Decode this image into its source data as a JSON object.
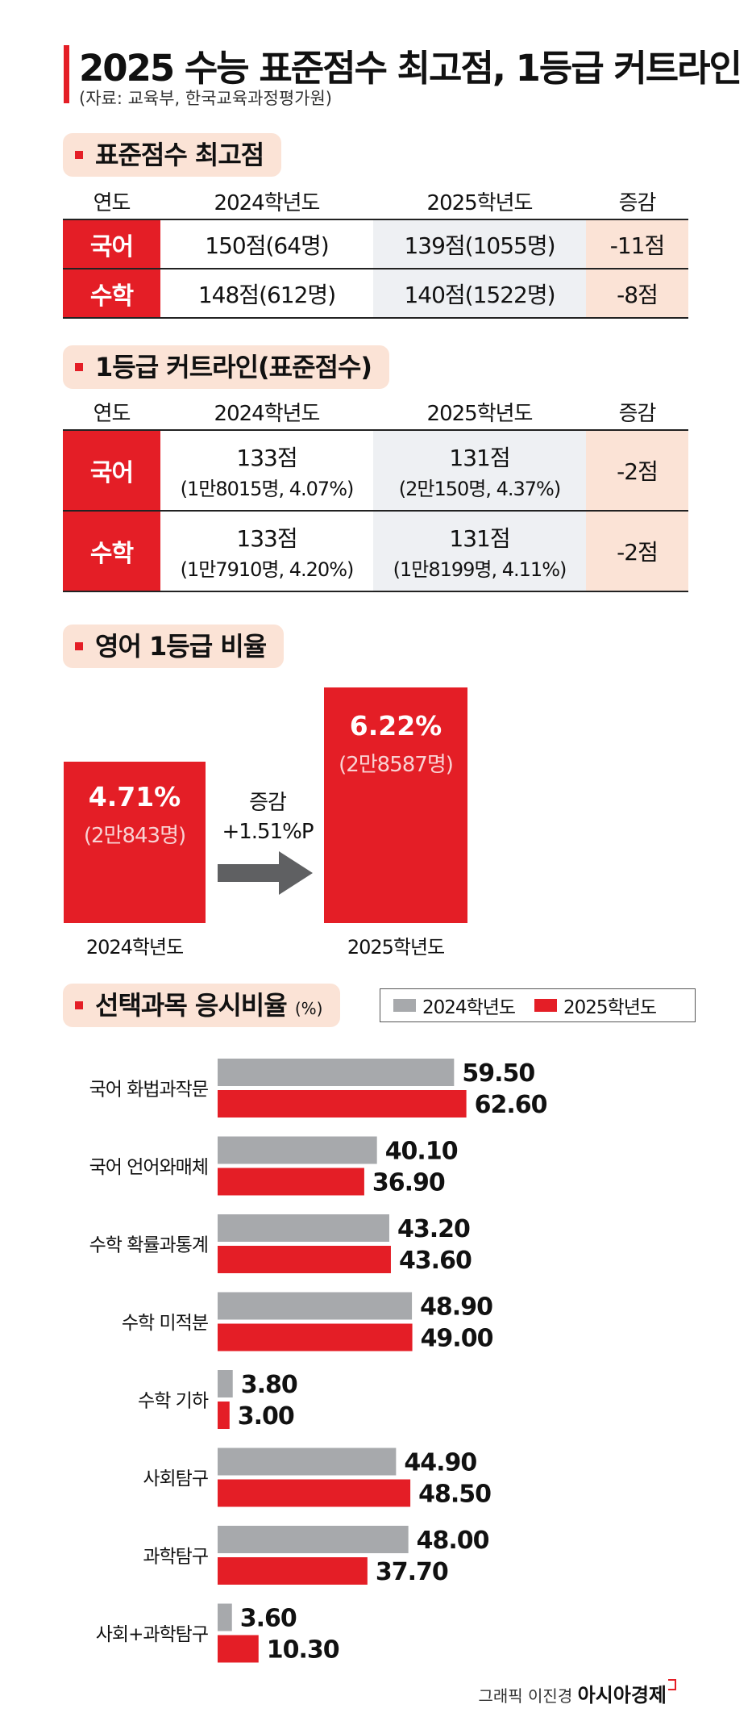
{
  "header": {
    "title": "2025 수능 표준점수 최고점, 1등급 커트라인",
    "source": "(자료: 교육부, 한국교육과정평가원)"
  },
  "section1": {
    "title": "표준점수 최고점",
    "headers": [
      "연도",
      "2024학년도",
      "2025학년도",
      "증감"
    ],
    "rows": [
      {
        "subject": "국어",
        "y2024": "150점(64명)",
        "y2025": "139점(1055명)",
        "change": "-11점"
      },
      {
        "subject": "수학",
        "y2024": "148점(612명)",
        "y2025": "140점(1522명)",
        "change": "-8점"
      }
    ]
  },
  "section2": {
    "title": "1등급 커트라인(표준점수)",
    "headers": [
      "연도",
      "2024학년도",
      "2025학년도",
      "증감"
    ],
    "rows": [
      {
        "subject": "국어",
        "y2024_score": "133점",
        "y2024_detail": "(1만8015명, 4.07%)",
        "y2025_score": "131점",
        "y2025_detail": "(2만150명, 4.37%)",
        "change": "-2점"
      },
      {
        "subject": "수학",
        "y2024_score": "133점",
        "y2024_detail": "(1만7910명, 4.20%)",
        "y2025_score": "131점",
        "y2025_detail": "(1만8199명, 4.11%)",
        "change": "-2점"
      }
    ]
  },
  "section3": {
    "title": "영어 1등급 비율",
    "y2024": {
      "value": "4.71%",
      "count": "(2만843명)",
      "label": "2024학년도"
    },
    "y2025": {
      "value": "6.22%",
      "count": "(2만8587명)",
      "label": "2025학년도"
    },
    "change_label": "증감",
    "change_value": "+1.51%P"
  },
  "section4": {
    "title": "선택과목 응시비율",
    "unit": "(%)"
  },
  "chart_data": {
    "type": "bar",
    "orientation": "horizontal",
    "categories": [
      "국어 화법과작문",
      "국어 언어와매체",
      "수학 확률과통계",
      "수학 미적분",
      "수학 기하",
      "사회탐구",
      "과학탐구",
      "사회+과학탐구"
    ],
    "series": [
      {
        "name": "2024학년도",
        "values": [
          59.5,
          40.1,
          43.2,
          48.9,
          3.8,
          44.9,
          48.0,
          3.6
        ],
        "labels": [
          "59.50",
          "40.10",
          "43.20",
          "48.90",
          "3.80",
          "44.90",
          "48.00",
          "3.60"
        ],
        "color": "#a7a9ac"
      },
      {
        "name": "2025학년도",
        "values": [
          62.6,
          36.9,
          43.6,
          49.0,
          3.0,
          48.5,
          37.7,
          10.3
        ],
        "labels": [
          "62.60",
          "36.90",
          "43.60",
          "49.00",
          "3.00",
          "48.50",
          "37.70",
          "10.30"
        ],
        "color": "#e41e26"
      }
    ],
    "legend_position": "top-right",
    "grid": false
  },
  "footer": {
    "credit": "그래픽 이진경",
    "brand": "아시아경제"
  }
}
